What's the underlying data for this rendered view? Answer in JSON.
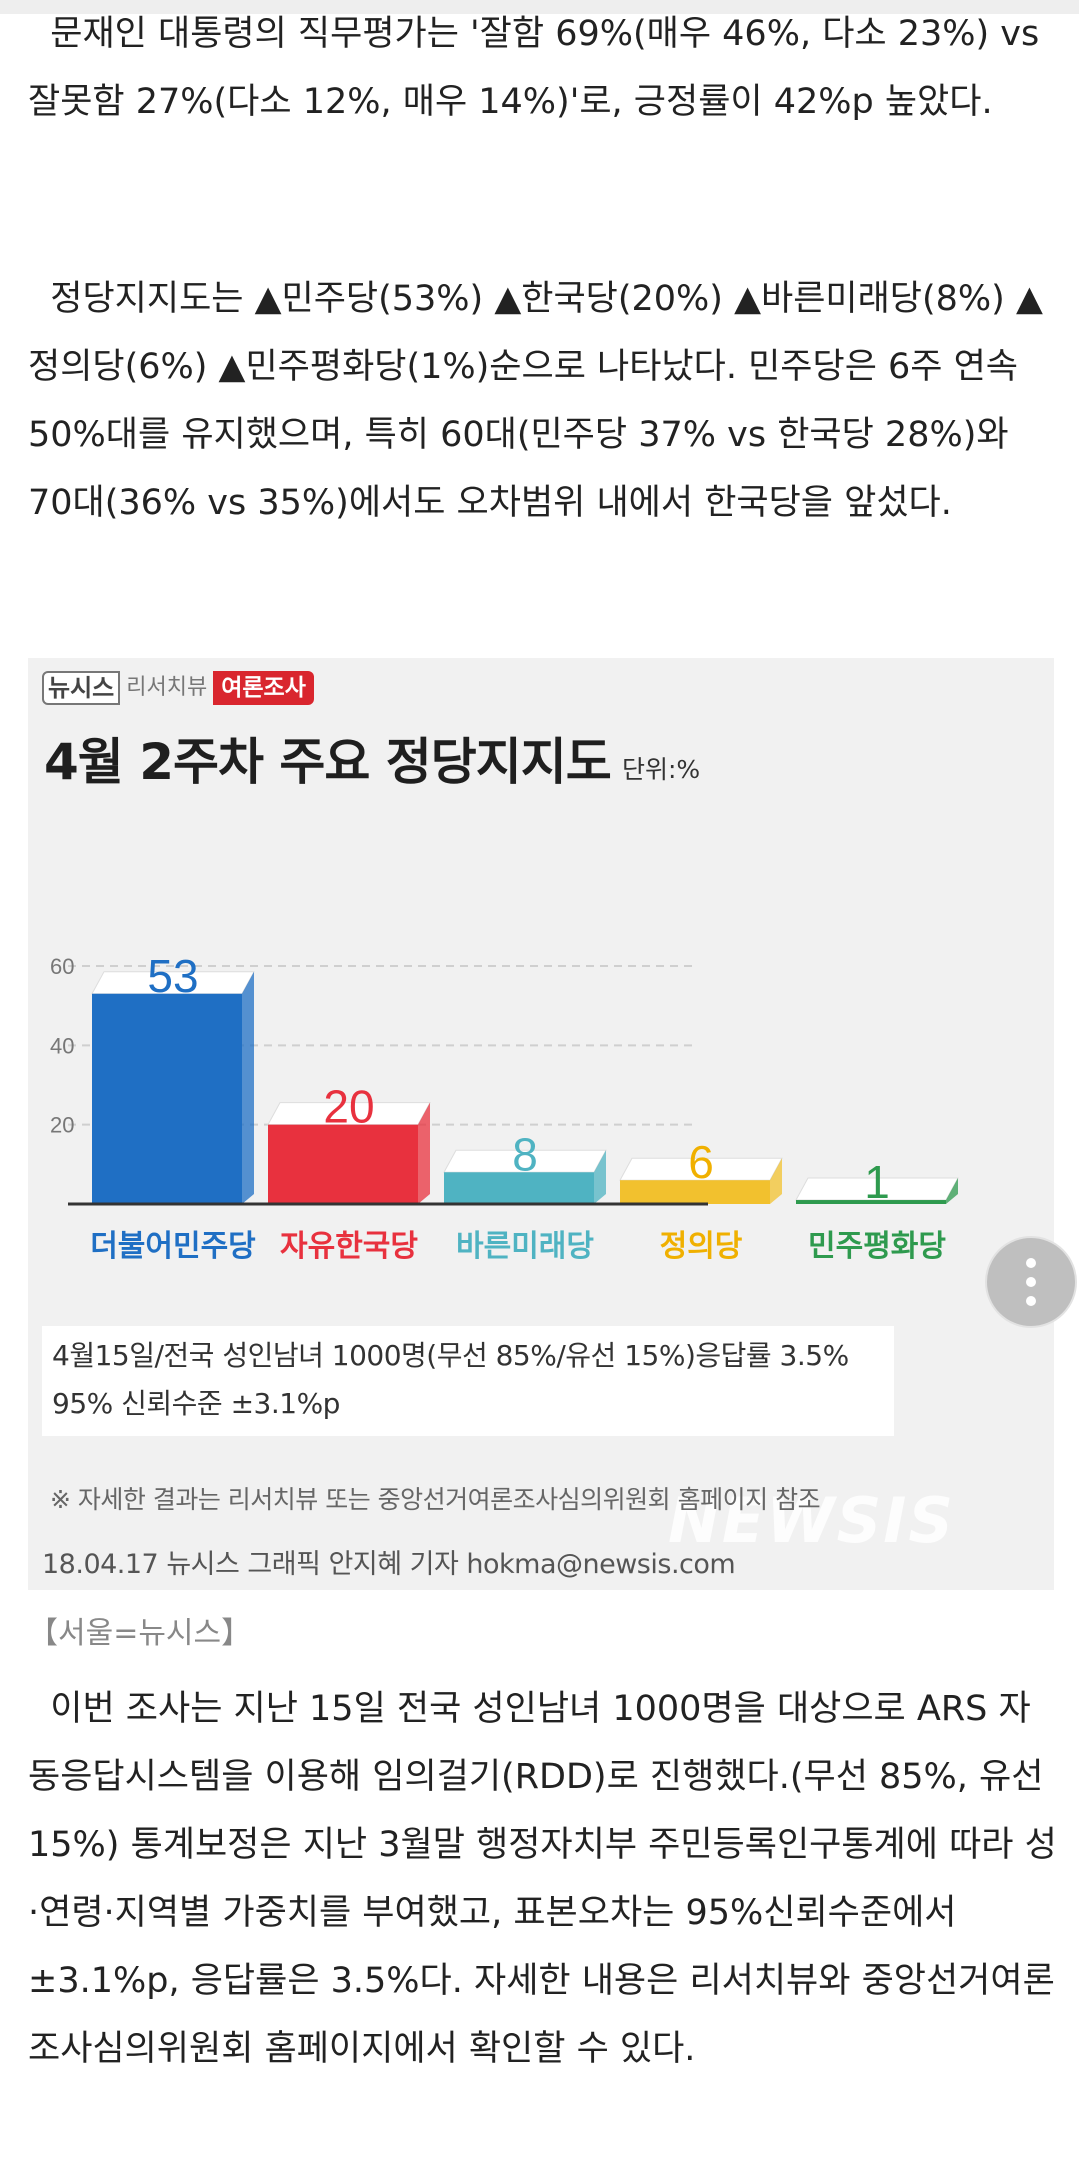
{
  "article": {
    "para1": "  문재인 대통령의 직무평가는 '잘함 69%(매우 46%, 다소 23%) vs 잘못함 27%(다소 12%, 매우 14%)'로, 긍정률이 42%p 높았다.",
    "para2": "  정당지지도는 ▲민주당(53%) ▲한국당(20%) ▲바른미래당(8%) ▲정의당(6%) ▲민주평화당(1%)순으로 나타났다. 민주당은 6주 연속 50%대를 유지했으며, 특히 60대(민주당 37% vs 한국당 28%)와 70대(36% vs 35%)에서도 오차범위 내에서 한국당을 앞섰다.",
    "para3": "  이번 조사는 지난 15일 전국 성인남녀 1000명을 대상으로 ARS 자동응답시스템을 이용해 임의걸기(RDD)로 진행했다.(무선 85%, 유선 15%) 통계보정은 지난 3월말 행정자치부 주민등록인구통계에 따라 성·연령·지역별 가중치를 부여했고, 표본오차는 95%신뢰수준에서 ±3.1%p, 응답률은 3.5%다. 자세한 내용은 리서치뷰와 중앙선거여론조사심의위원회 홈페이지에서 확인할 수 있다."
  },
  "graphic": {
    "brand_main": "뉴시스",
    "brand_sub": "리서치뷰",
    "brand_tag": "여론조사",
    "title": "4월 2주차 주요 정당지지도",
    "unit": "단위:%",
    "note_line1": "4월15일/전국 성인남녀 1000명(무선 85%/유선 15%)응답률 3.5%",
    "note_line2": "95% 신뢰수준 ±3.1%p",
    "reference": "※ 자세한 결과는 리서치뷰 또는 중앙선거여론조사심의위원회 홈페이지 참조",
    "credit": "18.04.17 뉴시스 그래픽 안지혜 기자 hokma@newsis.com",
    "watermark": "NEWSIS",
    "caption": "【서울=뉴시스】"
  },
  "chart_data": {
    "type": "bar",
    "title": "4월 2주차 주요 정당지지도",
    "ylabel": "단위:%",
    "ylim": [
      0,
      60
    ],
    "yticks": [
      20,
      40,
      60
    ],
    "grid": true,
    "categories": [
      "더불어민주당",
      "자유한국당",
      "바른미래당",
      "정의당",
      "민주평화당"
    ],
    "values": [
      53,
      20,
      8,
      6,
      1
    ],
    "colors": [
      "#1f6fc4",
      "#e8313e",
      "#4fb3c2",
      "#f2c12e",
      "#2e9a4e"
    ],
    "label_colors": [
      "#1f6fc4",
      "#e8313e",
      "#4fb3c2",
      "#f0b000",
      "#2e9a4e"
    ]
  },
  "ui": {
    "more_button": "more-vertical-icon"
  }
}
